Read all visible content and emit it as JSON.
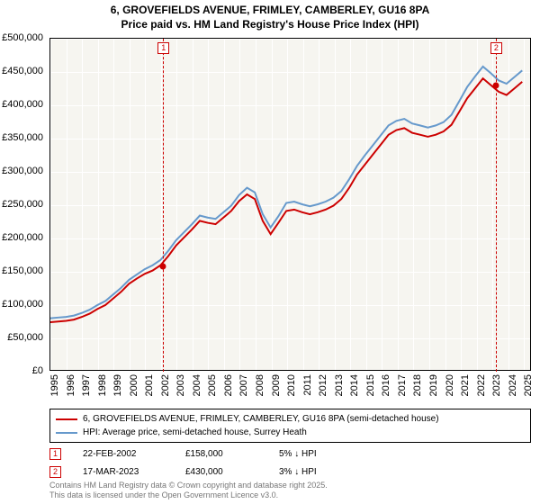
{
  "title_line1": "6, GROVEFIELDS AVENUE, FRIMLEY, CAMBERLEY, GU16 8PA",
  "title_line2": "Price paid vs. HM Land Registry's House Price Index (HPI)",
  "chart": {
    "type": "line",
    "background_color": "#f6f5f0",
    "grid_color": "#ffffff",
    "border_color": "#000000",
    "ylim": [
      0,
      500000
    ],
    "ytick_step": 50000,
    "y_labels": [
      "£0",
      "£50,000",
      "£100,000",
      "£150,000",
      "£200,000",
      "£250,000",
      "£300,000",
      "£350,000",
      "£400,000",
      "£450,000",
      "£500,000"
    ],
    "xlim": [
      1995,
      2025.5
    ],
    "x_labels": [
      "1995",
      "1996",
      "1997",
      "1998",
      "1999",
      "2000",
      "2001",
      "2002",
      "2003",
      "2004",
      "2005",
      "2006",
      "2007",
      "2008",
      "2009",
      "2010",
      "2011",
      "2012",
      "2013",
      "2014",
      "2015",
      "2016",
      "2017",
      "2018",
      "2019",
      "2020",
      "2021",
      "2022",
      "2023",
      "2024",
      "2025"
    ],
    "series": [
      {
        "name": "price_paid",
        "color": "#cc0000",
        "width": 2,
        "points": [
          [
            1995,
            72000
          ],
          [
            1995.5,
            73000
          ],
          [
            1996,
            74000
          ],
          [
            1996.5,
            76000
          ],
          [
            1997,
            80000
          ],
          [
            1997.5,
            85000
          ],
          [
            1998,
            92000
          ],
          [
            1998.5,
            98000
          ],
          [
            1999,
            108000
          ],
          [
            1999.5,
            118000
          ],
          [
            2000,
            130000
          ],
          [
            2000.5,
            138000
          ],
          [
            2001,
            145000
          ],
          [
            2001.5,
            150000
          ],
          [
            2002,
            158000
          ],
          [
            2002.5,
            172000
          ],
          [
            2003,
            188000
          ],
          [
            2003.5,
            200000
          ],
          [
            2004,
            212000
          ],
          [
            2004.5,
            225000
          ],
          [
            2005,
            222000
          ],
          [
            2005.5,
            220000
          ],
          [
            2006,
            230000
          ],
          [
            2006.5,
            240000
          ],
          [
            2007,
            255000
          ],
          [
            2007.5,
            265000
          ],
          [
            2008,
            258000
          ],
          [
            2008.5,
            225000
          ],
          [
            2009,
            205000
          ],
          [
            2009.5,
            222000
          ],
          [
            2010,
            240000
          ],
          [
            2010.5,
            242000
          ],
          [
            2011,
            238000
          ],
          [
            2011.5,
            235000
          ],
          [
            2012,
            238000
          ],
          [
            2012.5,
            242000
          ],
          [
            2013,
            248000
          ],
          [
            2013.5,
            258000
          ],
          [
            2014,
            275000
          ],
          [
            2014.5,
            295000
          ],
          [
            2015,
            310000
          ],
          [
            2015.5,
            325000
          ],
          [
            2016,
            340000
          ],
          [
            2016.5,
            355000
          ],
          [
            2017,
            362000
          ],
          [
            2017.5,
            365000
          ],
          [
            2018,
            358000
          ],
          [
            2018.5,
            355000
          ],
          [
            2019,
            352000
          ],
          [
            2019.5,
            355000
          ],
          [
            2020,
            360000
          ],
          [
            2020.5,
            370000
          ],
          [
            2021,
            390000
          ],
          [
            2021.5,
            410000
          ],
          [
            2022,
            425000
          ],
          [
            2022.5,
            440000
          ],
          [
            2023,
            430000
          ],
          [
            2023.5,
            420000
          ],
          [
            2024,
            415000
          ],
          [
            2024.5,
            425000
          ],
          [
            2025,
            435000
          ]
        ]
      },
      {
        "name": "hpi",
        "color": "#6699cc",
        "width": 2,
        "points": [
          [
            1995,
            78000
          ],
          [
            1995.5,
            79000
          ],
          [
            1996,
            80000
          ],
          [
            1996.5,
            82000
          ],
          [
            1997,
            86000
          ],
          [
            1997.5,
            91000
          ],
          [
            1998,
            98000
          ],
          [
            1998.5,
            104000
          ],
          [
            1999,
            114000
          ],
          [
            1999.5,
            124000
          ],
          [
            2000,
            136000
          ],
          [
            2000.5,
            144000
          ],
          [
            2001,
            152000
          ],
          [
            2001.5,
            158000
          ],
          [
            2002,
            166000
          ],
          [
            2002.5,
            180000
          ],
          [
            2003,
            196000
          ],
          [
            2003.5,
            208000
          ],
          [
            2004,
            220000
          ],
          [
            2004.5,
            233000
          ],
          [
            2005,
            230000
          ],
          [
            2005.5,
            228000
          ],
          [
            2006,
            238000
          ],
          [
            2006.5,
            248000
          ],
          [
            2007,
            264000
          ],
          [
            2007.5,
            275000
          ],
          [
            2008,
            268000
          ],
          [
            2008.5,
            235000
          ],
          [
            2009,
            215000
          ],
          [
            2009.5,
            232000
          ],
          [
            2010,
            252000
          ],
          [
            2010.5,
            254000
          ],
          [
            2011,
            250000
          ],
          [
            2011.5,
            247000
          ],
          [
            2012,
            250000
          ],
          [
            2012.5,
            254000
          ],
          [
            2013,
            260000
          ],
          [
            2013.5,
            270000
          ],
          [
            2014,
            288000
          ],
          [
            2014.5,
            308000
          ],
          [
            2015,
            324000
          ],
          [
            2015.5,
            339000
          ],
          [
            2016,
            354000
          ],
          [
            2016.5,
            369000
          ],
          [
            2017,
            376000
          ],
          [
            2017.5,
            379000
          ],
          [
            2018,
            372000
          ],
          [
            2018.5,
            369000
          ],
          [
            2019,
            366000
          ],
          [
            2019.5,
            369000
          ],
          [
            2020,
            374000
          ],
          [
            2020.5,
            385000
          ],
          [
            2021,
            406000
          ],
          [
            2021.5,
            427000
          ],
          [
            2022,
            443000
          ],
          [
            2022.5,
            458000
          ],
          [
            2023,
            448000
          ],
          [
            2023.5,
            437000
          ],
          [
            2024,
            432000
          ],
          [
            2024.5,
            442000
          ],
          [
            2025,
            452000
          ]
        ]
      }
    ],
    "markers": [
      {
        "label": "1",
        "x": 2002.14,
        "y": 158000
      },
      {
        "label": "2",
        "x": 2023.21,
        "y": 430000
      }
    ]
  },
  "legend": {
    "items": [
      {
        "color": "#cc0000",
        "label": "6, GROVEFIELDS AVENUE, FRIMLEY, CAMBERLEY, GU16 8PA (semi-detached house)"
      },
      {
        "color": "#6699cc",
        "label": "HPI: Average price, semi-detached house, Surrey Heath"
      }
    ]
  },
  "transactions": [
    {
      "marker": "1",
      "date": "22-FEB-2002",
      "price": "£158,000",
      "delta": "5% ↓ HPI"
    },
    {
      "marker": "2",
      "date": "17-MAR-2023",
      "price": "£430,000",
      "delta": "3% ↓ HPI"
    }
  ],
  "footer_line1": "Contains HM Land Registry data © Crown copyright and database right 2025.",
  "footer_line2": "This data is licensed under the Open Government Licence v3.0."
}
